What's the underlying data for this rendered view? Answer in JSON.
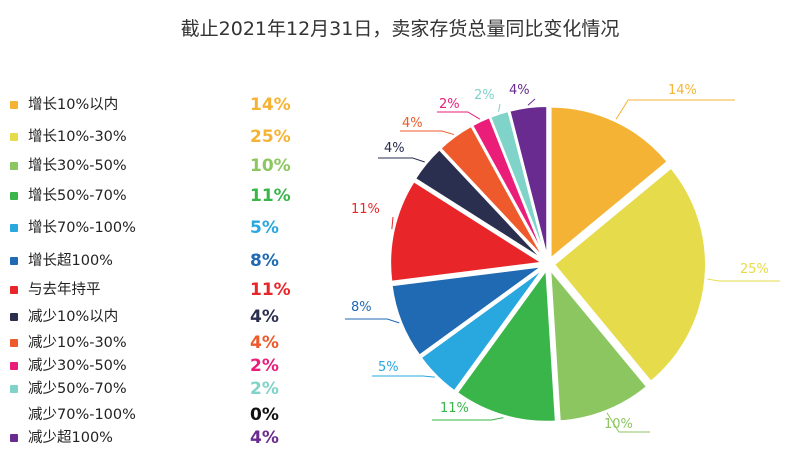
{
  "title": "截止2021年12月31日，卖家存货总量同比变化情况",
  "chart_data": {
    "type": "pie",
    "title": "截止2021年12月31日，卖家存货总量同比变化情况",
    "legend_position": "left",
    "slices": [
      {
        "label": "增长10%以内",
        "value": 14,
        "pct_label": "14%",
        "color": "#f5b335"
      },
      {
        "label": "增长10%-30%",
        "value": 25,
        "pct_label": "25%",
        "color": "#e6db4a"
      },
      {
        "label": "增长30%-50%",
        "value": 10,
        "pct_label": "10%",
        "color": "#8cc661"
      },
      {
        "label": "增长50%-70%",
        "value": 11,
        "pct_label": "11%",
        "color": "#3ab54a"
      },
      {
        "label": "增长70%-100%",
        "value": 5,
        "pct_label": "5%",
        "color": "#29a8df"
      },
      {
        "label": "增长超100%",
        "value": 8,
        "pct_label": "8%",
        "color": "#2069b3"
      },
      {
        "label": "与去年持平",
        "value": 11,
        "pct_label": "11%",
        "color": "#e8262a"
      },
      {
        "label": "减少10%以内",
        "value": 4,
        "pct_label": "4%",
        "color": "#2a2e4f"
      },
      {
        "label": "减少10%-30%",
        "value": 4,
        "pct_label": "4%",
        "color": "#ee5a2b"
      },
      {
        "label": "减少30%-50%",
        "value": 2,
        "pct_label": "2%",
        "color": "#ea1e79"
      },
      {
        "label": "减少50%-70%",
        "value": 2,
        "pct_label": "2%",
        "color": "#7fd3c8"
      },
      {
        "label": "减少70%-100%",
        "value": 0,
        "pct_label": "0%",
        "color": "#111111"
      },
      {
        "label": "减少超100%",
        "value": 4,
        "pct_label": "4%",
        "color": "#6a2b90"
      }
    ]
  }
}
